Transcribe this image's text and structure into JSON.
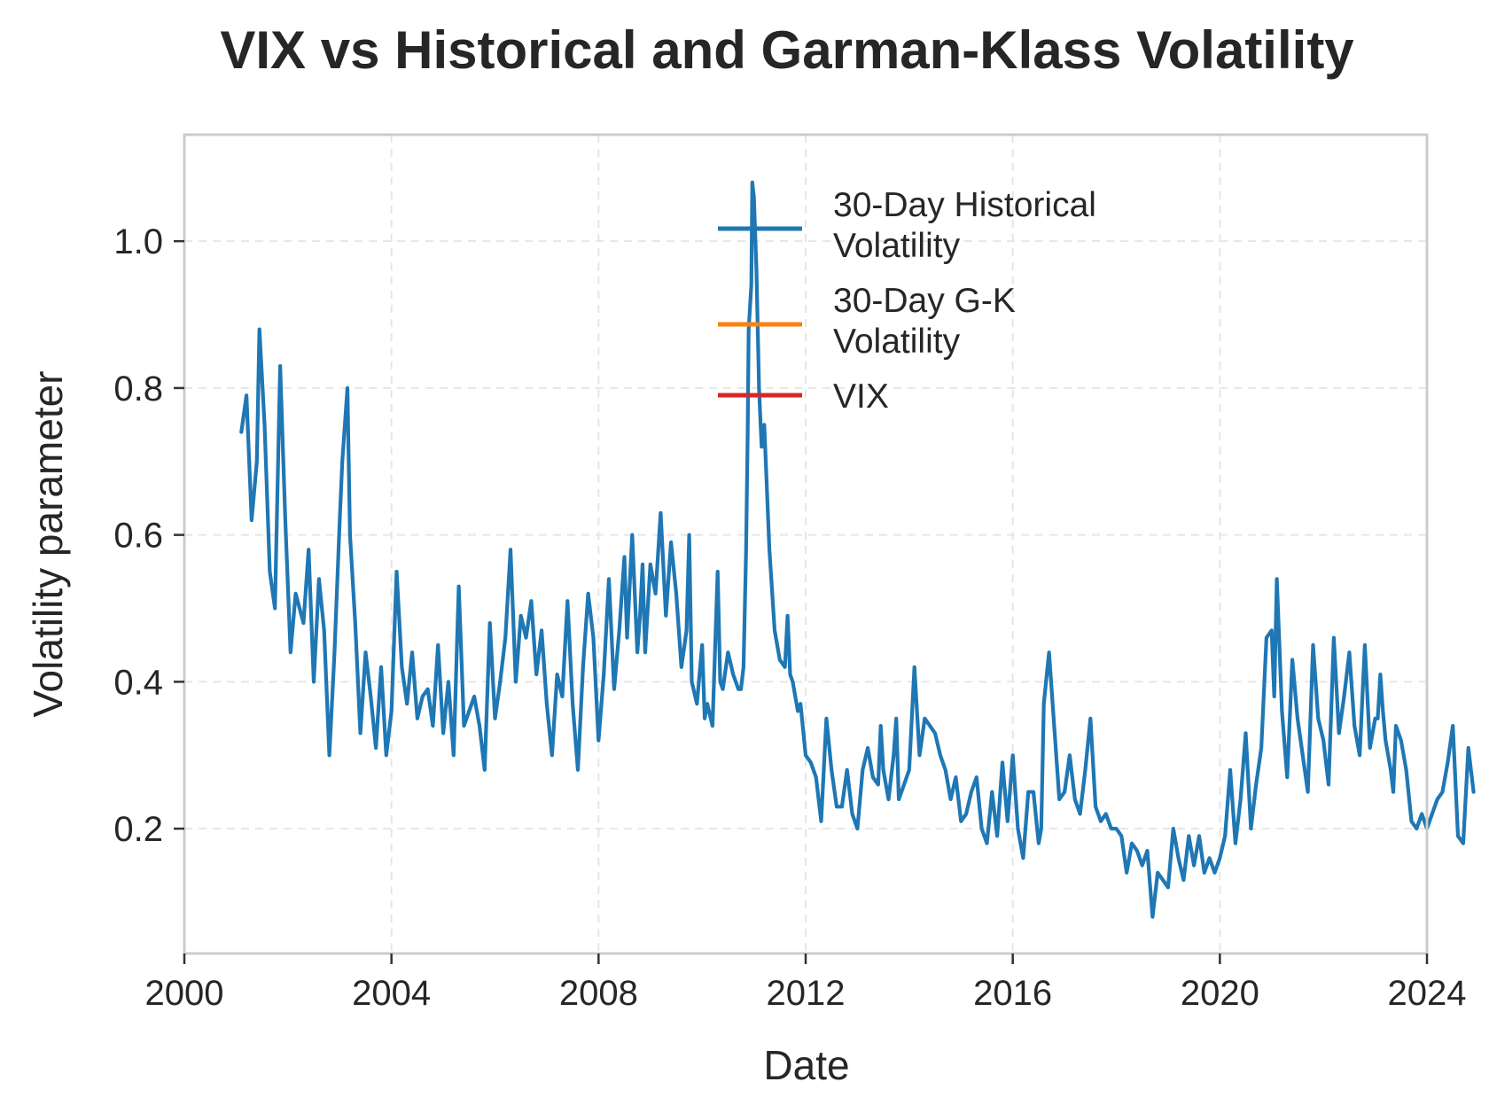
{
  "chart_data": {
    "type": "line",
    "title": "VIX vs Historical and Garman-Klass Volatility",
    "xlabel": "Date",
    "ylabel": "Volatility parameter",
    "xlim": [
      2000,
      2024
    ],
    "ylim": [
      0.03,
      1.145
    ],
    "x_ticks": [
      "2000",
      "2004",
      "2008",
      "2012",
      "2016",
      "2020",
      "2024"
    ],
    "y_ticks": [
      "0.2",
      "0.4",
      "0.6",
      "0.8",
      "1.0"
    ],
    "grid": true,
    "legend_position": "upper-center",
    "series": [
      {
        "name": "30-Day Historical Volatility",
        "legend_lines": [
          "30-Day Historical",
          "Volatility"
        ],
        "color": "#1f77b4",
        "points": [
          [
            2001.1,
            0.74
          ],
          [
            2001.2,
            0.79
          ],
          [
            2001.3,
            0.62
          ],
          [
            2001.4,
            0.7
          ],
          [
            2001.45,
            0.88
          ],
          [
            2001.55,
            0.75
          ],
          [
            2001.65,
            0.55
          ],
          [
            2001.75,
            0.5
          ],
          [
            2001.85,
            0.83
          ],
          [
            2001.95,
            0.62
          ],
          [
            2002.05,
            0.44
          ],
          [
            2002.15,
            0.52
          ],
          [
            2002.3,
            0.48
          ],
          [
            2002.4,
            0.58
          ],
          [
            2002.5,
            0.4
          ],
          [
            2002.6,
            0.54
          ],
          [
            2002.7,
            0.47
          ],
          [
            2002.8,
            0.3
          ],
          [
            2002.9,
            0.44
          ],
          [
            2003.0,
            0.62
          ],
          [
            2003.05,
            0.7
          ],
          [
            2003.15,
            0.8
          ],
          [
            2003.2,
            0.6
          ],
          [
            2003.3,
            0.48
          ],
          [
            2003.4,
            0.33
          ],
          [
            2003.5,
            0.44
          ],
          [
            2003.6,
            0.38
          ],
          [
            2003.7,
            0.31
          ],
          [
            2003.8,
            0.42
          ],
          [
            2003.9,
            0.3
          ],
          [
            2004.0,
            0.36
          ],
          [
            2004.1,
            0.55
          ],
          [
            2004.2,
            0.42
          ],
          [
            2004.3,
            0.37
          ],
          [
            2004.4,
            0.44
          ],
          [
            2004.5,
            0.35
          ],
          [
            2004.6,
            0.38
          ],
          [
            2004.7,
            0.39
          ],
          [
            2004.8,
            0.34
          ],
          [
            2004.9,
            0.45
          ],
          [
            2005.0,
            0.33
          ],
          [
            2005.1,
            0.4
          ],
          [
            2005.2,
            0.3
          ],
          [
            2005.3,
            0.53
          ],
          [
            2005.4,
            0.34
          ],
          [
            2005.5,
            0.36
          ],
          [
            2005.6,
            0.38
          ],
          [
            2005.7,
            0.34
          ],
          [
            2005.8,
            0.28
          ],
          [
            2005.9,
            0.48
          ],
          [
            2006.0,
            0.35
          ],
          [
            2006.1,
            0.4
          ],
          [
            2006.2,
            0.46
          ],
          [
            2006.3,
            0.58
          ],
          [
            2006.4,
            0.4
          ],
          [
            2006.5,
            0.49
          ],
          [
            2006.6,
            0.46
          ],
          [
            2006.7,
            0.51
          ],
          [
            2006.8,
            0.41
          ],
          [
            2006.9,
            0.47
          ],
          [
            2007.0,
            0.37
          ],
          [
            2007.1,
            0.3
          ],
          [
            2007.2,
            0.41
          ],
          [
            2007.3,
            0.38
          ],
          [
            2007.4,
            0.51
          ],
          [
            2007.5,
            0.37
          ],
          [
            2007.6,
            0.28
          ],
          [
            2007.7,
            0.42
          ],
          [
            2007.8,
            0.52
          ],
          [
            2007.9,
            0.46
          ],
          [
            2008.0,
            0.32
          ],
          [
            2008.1,
            0.41
          ],
          [
            2008.2,
            0.54
          ],
          [
            2008.3,
            0.39
          ],
          [
            2008.4,
            0.47
          ],
          [
            2008.5,
            0.57
          ],
          [
            2008.55,
            0.46
          ],
          [
            2008.65,
            0.6
          ],
          [
            2008.7,
            0.52
          ],
          [
            2008.75,
            0.44
          ],
          [
            2008.8,
            0.49
          ],
          [
            2008.85,
            0.56
          ],
          [
            2008.9,
            0.44
          ],
          [
            2009.0,
            0.56
          ],
          [
            2009.1,
            0.52
          ],
          [
            2009.2,
            0.63
          ],
          [
            2009.3,
            0.49
          ],
          [
            2009.4,
            0.59
          ],
          [
            2009.5,
            0.52
          ],
          [
            2009.6,
            0.42
          ],
          [
            2009.7,
            0.47
          ],
          [
            2009.75,
            0.6
          ],
          [
            2009.8,
            0.4
          ],
          [
            2009.9,
            0.37
          ],
          [
            2010.0,
            0.45
          ],
          [
            2010.05,
            0.35
          ],
          [
            2010.1,
            0.37
          ],
          [
            2010.2,
            0.34
          ],
          [
            2010.3,
            0.55
          ],
          [
            2010.35,
            0.4
          ],
          [
            2010.4,
            0.39
          ],
          [
            2010.5,
            0.44
          ],
          [
            2010.6,
            0.41
          ],
          [
            2010.7,
            0.39
          ],
          [
            2010.75,
            0.39
          ],
          [
            2010.8,
            0.42
          ],
          [
            2010.85,
            0.58
          ],
          [
            2010.88,
            0.74
          ],
          [
            2010.9,
            0.88
          ],
          [
            2010.95,
            0.94
          ],
          [
            2010.97,
            1.08
          ],
          [
            2011.0,
            1.06
          ],
          [
            2011.05,
            0.96
          ],
          [
            2011.1,
            0.8
          ],
          [
            2011.15,
            0.72
          ],
          [
            2011.2,
            0.75
          ],
          [
            2011.3,
            0.58
          ],
          [
            2011.4,
            0.47
          ],
          [
            2011.5,
            0.43
          ],
          [
            2011.6,
            0.42
          ],
          [
            2011.65,
            0.49
          ],
          [
            2011.7,
            0.41
          ],
          [
            2011.75,
            0.4
          ],
          [
            2011.8,
            0.38
          ],
          [
            2011.85,
            0.36
          ],
          [
            2011.9,
            0.37
          ],
          [
            2012.0,
            0.3
          ],
          [
            2012.1,
            0.29
          ],
          [
            2012.2,
            0.27
          ],
          [
            2012.3,
            0.21
          ],
          [
            2012.4,
            0.35
          ],
          [
            2012.5,
            0.28
          ],
          [
            2012.6,
            0.23
          ],
          [
            2012.7,
            0.23
          ],
          [
            2012.8,
            0.28
          ],
          [
            2012.9,
            0.22
          ],
          [
            2013.0,
            0.2
          ],
          [
            2013.1,
            0.28
          ],
          [
            2013.2,
            0.31
          ],
          [
            2013.3,
            0.27
          ],
          [
            2013.4,
            0.26
          ],
          [
            2013.45,
            0.34
          ],
          [
            2013.5,
            0.28
          ],
          [
            2013.6,
            0.24
          ],
          [
            2013.7,
            0.3
          ],
          [
            2013.75,
            0.35
          ],
          [
            2013.8,
            0.24
          ],
          [
            2013.9,
            0.26
          ],
          [
            2014.0,
            0.28
          ],
          [
            2014.1,
            0.42
          ],
          [
            2014.2,
            0.3
          ],
          [
            2014.3,
            0.35
          ],
          [
            2014.4,
            0.34
          ],
          [
            2014.5,
            0.33
          ],
          [
            2014.6,
            0.3
          ],
          [
            2014.7,
            0.28
          ],
          [
            2014.8,
            0.24
          ],
          [
            2014.9,
            0.27
          ],
          [
            2015.0,
            0.21
          ],
          [
            2015.1,
            0.22
          ],
          [
            2015.2,
            0.25
          ],
          [
            2015.3,
            0.27
          ],
          [
            2015.4,
            0.2
          ],
          [
            2015.5,
            0.18
          ],
          [
            2015.6,
            0.25
          ],
          [
            2015.7,
            0.19
          ],
          [
            2015.8,
            0.29
          ],
          [
            2015.9,
            0.21
          ],
          [
            2016.0,
            0.3
          ],
          [
            2016.1,
            0.2
          ],
          [
            2016.2,
            0.16
          ],
          [
            2016.3,
            0.25
          ],
          [
            2016.4,
            0.25
          ],
          [
            2016.5,
            0.18
          ],
          [
            2016.55,
            0.2
          ],
          [
            2016.6,
            0.37
          ],
          [
            2016.7,
            0.44
          ],
          [
            2016.8,
            0.34
          ],
          [
            2016.9,
            0.24
          ],
          [
            2017.0,
            0.25
          ],
          [
            2017.1,
            0.3
          ],
          [
            2017.2,
            0.24
          ],
          [
            2017.3,
            0.22
          ],
          [
            2017.4,
            0.28
          ],
          [
            2017.5,
            0.35
          ],
          [
            2017.6,
            0.23
          ],
          [
            2017.7,
            0.21
          ],
          [
            2017.8,
            0.22
          ],
          [
            2017.9,
            0.2
          ],
          [
            2018.0,
            0.2
          ],
          [
            2018.1,
            0.19
          ],
          [
            2018.2,
            0.14
          ],
          [
            2018.3,
            0.18
          ],
          [
            2018.4,
            0.17
          ],
          [
            2018.5,
            0.15
          ],
          [
            2018.6,
            0.17
          ],
          [
            2018.7,
            0.08
          ],
          [
            2018.8,
            0.14
          ],
          [
            2018.9,
            0.13
          ],
          [
            2019.0,
            0.12
          ],
          [
            2019.1,
            0.2
          ],
          [
            2019.2,
            0.16
          ],
          [
            2019.3,
            0.13
          ],
          [
            2019.4,
            0.19
          ],
          [
            2019.5,
            0.15
          ],
          [
            2019.6,
            0.19
          ],
          [
            2019.7,
            0.14
          ],
          [
            2019.8,
            0.16
          ],
          [
            2019.9,
            0.14
          ],
          [
            2020.0,
            0.16
          ],
          [
            2020.1,
            0.19
          ],
          [
            2020.2,
            0.28
          ],
          [
            2020.3,
            0.18
          ],
          [
            2020.4,
            0.24
          ],
          [
            2020.5,
            0.33
          ],
          [
            2020.6,
            0.2
          ],
          [
            2020.7,
            0.26
          ],
          [
            2020.8,
            0.31
          ],
          [
            2020.9,
            0.46
          ],
          [
            2021.0,
            0.47
          ],
          [
            2021.05,
            0.38
          ],
          [
            2021.1,
            0.54
          ],
          [
            2021.15,
            0.45
          ],
          [
            2021.2,
            0.36
          ],
          [
            2021.3,
            0.27
          ],
          [
            2021.4,
            0.43
          ],
          [
            2021.5,
            0.35
          ],
          [
            2021.6,
            0.3
          ],
          [
            2021.7,
            0.25
          ],
          [
            2021.8,
            0.45
          ],
          [
            2021.9,
            0.35
          ],
          [
            2022.0,
            0.32
          ],
          [
            2022.1,
            0.26
          ],
          [
            2022.2,
            0.46
          ],
          [
            2022.3,
            0.33
          ],
          [
            2022.4,
            0.38
          ],
          [
            2022.5,
            0.44
          ],
          [
            2022.6,
            0.34
          ],
          [
            2022.7,
            0.3
          ],
          [
            2022.8,
            0.45
          ],
          [
            2022.9,
            0.31
          ],
          [
            2023.0,
            0.35
          ],
          [
            2023.05,
            0.35
          ],
          [
            2023.1,
            0.41
          ],
          [
            2023.15,
            0.36
          ],
          [
            2023.2,
            0.32
          ],
          [
            2023.3,
            0.28
          ],
          [
            2023.35,
            0.25
          ],
          [
            2023.4,
            0.34
          ],
          [
            2023.5,
            0.32
          ],
          [
            2023.6,
            0.28
          ],
          [
            2023.7,
            0.21
          ],
          [
            2023.8,
            0.2
          ],
          [
            2023.9,
            0.22
          ],
          [
            2024.0,
            0.2
          ],
          [
            2024.1,
            0.22
          ],
          [
            2024.2,
            0.24
          ],
          [
            2024.3,
            0.25
          ],
          [
            2024.4,
            0.29
          ],
          [
            2024.5,
            0.34
          ],
          [
            2024.6,
            0.19
          ],
          [
            2024.7,
            0.18
          ],
          [
            2024.8,
            0.31
          ],
          [
            2024.9,
            0.25
          ]
        ]
      },
      {
        "name": "30-Day G-K Volatility",
        "legend_lines": [
          "30-Day G-K",
          "Volatility"
        ],
        "color": "#ff7f0e",
        "points": []
      },
      {
        "name": "VIX",
        "legend_lines": [
          "VIX"
        ],
        "color": "#d62728",
        "points": []
      }
    ]
  }
}
